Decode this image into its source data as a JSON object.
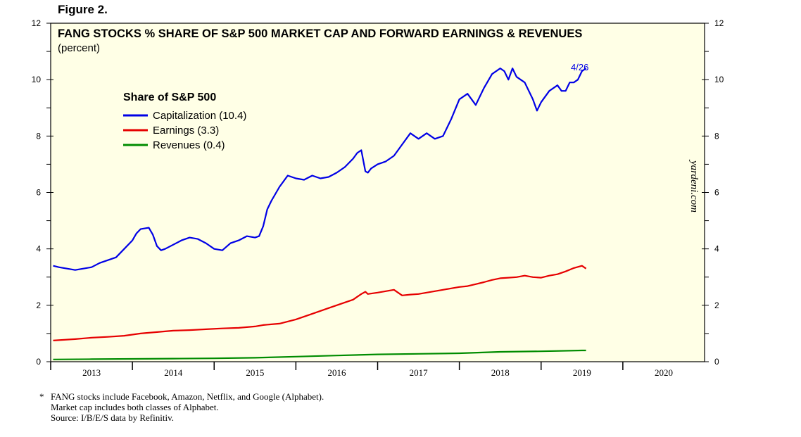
{
  "figure_label": "Figure 2.",
  "footnote": {
    "marker": "*",
    "lines": [
      "FANG stocks include Facebook, Amazon, Netflix, and Google (Alphabet).",
      "Market cap includes both classes of Alphabet.",
      "Source: I/B/E/S data by Refinitiv."
    ]
  },
  "colors": {
    "background": "#ffffe6",
    "capitalization": "#0000e6",
    "earnings": "#e60000",
    "revenues": "#008c00"
  },
  "chart_data": {
    "type": "line",
    "title": "FANG STOCKS % SHARE OF S&P 500 MARKET CAP AND FORWARD EARNINGS & REVENUES",
    "subtitle": "(percent)",
    "watermark": "yardeni.com",
    "legend_title": "Share of S&P 500",
    "legend_position": "top-left",
    "end_annotation": "4/26",
    "ylim": [
      0,
      12
    ],
    "yticks": [
      "0",
      "2",
      "4",
      "6",
      "8",
      "10",
      "12"
    ],
    "xlim": [
      2012.5,
      2020.5
    ],
    "xticks": [
      "2013",
      "2014",
      "2015",
      "2016",
      "2017",
      "2018",
      "2019",
      "2020"
    ],
    "series": [
      {
        "name": "Capitalization (10.4)",
        "color": "#0000e6",
        "x": [
          2012.53,
          2012.6,
          2012.7,
          2012.8,
          2012.9,
          2013.0,
          2013.1,
          2013.2,
          2013.3,
          2013.4,
          2013.5,
          2013.55,
          2013.6,
          2013.7,
          2013.75,
          2013.8,
          2013.85,
          2013.9,
          2014.0,
          2014.1,
          2014.2,
          2014.3,
          2014.4,
          2014.5,
          2014.6,
          2014.7,
          2014.8,
          2014.9,
          2015.0,
          2015.05,
          2015.1,
          2015.15,
          2015.2,
          2015.3,
          2015.4,
          2015.5,
          2015.6,
          2015.7,
          2015.8,
          2015.9,
          2016.0,
          2016.1,
          2016.2,
          2016.25,
          2016.3,
          2016.35,
          2016.38,
          2016.42,
          2016.5,
          2016.6,
          2016.7,
          2016.8,
          2016.9,
          2017.0,
          2017.1,
          2017.2,
          2017.3,
          2017.4,
          2017.5,
          2017.6,
          2017.7,
          2017.8,
          2017.9,
          2018.0,
          2018.05,
          2018.1,
          2018.15,
          2018.2,
          2018.3,
          2018.4,
          2018.45,
          2018.5,
          2018.6,
          2018.7,
          2018.75,
          2018.8,
          2018.85,
          2018.9,
          2018.95,
          2019.0,
          2019.05
        ],
        "values": [
          3.4,
          3.35,
          3.3,
          3.25,
          3.3,
          3.35,
          3.5,
          3.6,
          3.7,
          4.0,
          4.3,
          4.55,
          4.7,
          4.75,
          4.5,
          4.1,
          3.95,
          4.0,
          4.15,
          4.3,
          4.4,
          4.35,
          4.2,
          4.0,
          3.95,
          4.2,
          4.3,
          4.45,
          4.4,
          4.45,
          4.8,
          5.4,
          5.7,
          6.2,
          6.6,
          6.5,
          6.45,
          6.6,
          6.5,
          6.55,
          6.7,
          6.9,
          7.2,
          7.4,
          7.5,
          6.75,
          6.7,
          6.85,
          7.0,
          7.1,
          7.3,
          7.7,
          8.1,
          7.9,
          8.1,
          7.9,
          8.0,
          8.6,
          9.3,
          9.5,
          9.1,
          9.7,
          10.2,
          10.4,
          10.3,
          10.0,
          10.4,
          10.1,
          9.9,
          9.3,
          8.9,
          9.2,
          9.6,
          9.8,
          9.6,
          9.6,
          9.9,
          9.9,
          10.0,
          10.3,
          10.4
        ]
      },
      {
        "name": "Earnings (3.3)",
        "color": "#e60000",
        "x": [
          2012.53,
          2012.8,
          2013.0,
          2013.2,
          2013.4,
          2013.6,
          2013.8,
          2014.0,
          2014.2,
          2014.4,
          2014.6,
          2014.8,
          2015.0,
          2015.1,
          2015.3,
          2015.5,
          2015.7,
          2015.9,
          2016.1,
          2016.2,
          2016.3,
          2016.35,
          2016.38,
          2016.5,
          2016.7,
          2016.8,
          2016.9,
          2017.0,
          2017.2,
          2017.3,
          2017.4,
          2017.5,
          2017.6,
          2017.7,
          2017.8,
          2017.9,
          2018.0,
          2018.1,
          2018.2,
          2018.3,
          2018.4,
          2018.5,
          2018.6,
          2018.7,
          2018.8,
          2018.9,
          2019.0,
          2019.05
        ],
        "values": [
          0.75,
          0.8,
          0.85,
          0.88,
          0.92,
          1.0,
          1.05,
          1.1,
          1.12,
          1.15,
          1.18,
          1.2,
          1.25,
          1.3,
          1.35,
          1.5,
          1.7,
          1.9,
          2.1,
          2.2,
          2.4,
          2.48,
          2.4,
          2.45,
          2.55,
          2.35,
          2.38,
          2.4,
          2.5,
          2.55,
          2.6,
          2.65,
          2.68,
          2.75,
          2.82,
          2.9,
          2.96,
          2.98,
          3.0,
          3.05,
          3.0,
          2.98,
          3.05,
          3.1,
          3.2,
          3.32,
          3.4,
          3.3
        ]
      },
      {
        "name": "Revenues (0.4)",
        "color": "#008c00",
        "x": [
          2012.53,
          2013.0,
          2013.5,
          2014.0,
          2014.5,
          2015.0,
          2015.5,
          2016.0,
          2016.5,
          2017.0,
          2017.5,
          2018.0,
          2018.5,
          2019.0,
          2019.05
        ],
        "values": [
          0.08,
          0.09,
          0.1,
          0.11,
          0.12,
          0.14,
          0.18,
          0.22,
          0.26,
          0.28,
          0.3,
          0.35,
          0.37,
          0.4,
          0.4
        ]
      }
    ]
  }
}
